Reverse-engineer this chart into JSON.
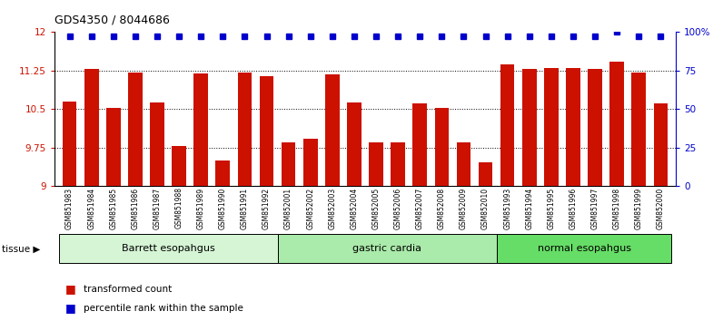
{
  "title": "GDS4350 / 8044686",
  "samples": [
    "GSM851983",
    "GSM851984",
    "GSM851985",
    "GSM851986",
    "GSM851987",
    "GSM851988",
    "GSM851989",
    "GSM851990",
    "GSM851991",
    "GSM851992",
    "GSM852001",
    "GSM852002",
    "GSM852003",
    "GSM852004",
    "GSM852005",
    "GSM852006",
    "GSM852007",
    "GSM852008",
    "GSM852009",
    "GSM852010",
    "GSM851993",
    "GSM851994",
    "GSM851995",
    "GSM851996",
    "GSM851997",
    "GSM851998",
    "GSM851999",
    "GSM852000"
  ],
  "bar_values": [
    10.65,
    11.28,
    10.52,
    11.22,
    10.63,
    9.78,
    11.2,
    9.5,
    11.22,
    11.15,
    9.85,
    9.93,
    11.17,
    10.63,
    9.86,
    9.86,
    10.62,
    10.52,
    9.86,
    9.47,
    11.38,
    11.28,
    11.3,
    11.3,
    11.28,
    11.42,
    11.22,
    10.62
  ],
  "percentile_values": [
    97,
    97,
    97,
    97,
    97,
    97,
    97,
    97,
    97,
    97,
    97,
    97,
    97,
    97,
    97,
    97,
    97,
    97,
    97,
    97,
    97,
    97,
    97,
    97,
    97,
    100,
    97,
    97
  ],
  "groups": [
    {
      "label": "Barrett esopahgus",
      "start": 0,
      "end": 10,
      "color": "#d5f5d5"
    },
    {
      "label": "gastric cardia",
      "start": 10,
      "end": 20,
      "color": "#aaeaaa"
    },
    {
      "label": "normal esopahgus",
      "start": 20,
      "end": 28,
      "color": "#66dd66"
    }
  ],
  "bar_color": "#cc1100",
  "dot_color": "#0000cc",
  "ylim_left": [
    9.0,
    12.0
  ],
  "ylim_right": [
    0,
    100
  ],
  "yticks_left": [
    9.0,
    9.75,
    10.5,
    11.25,
    12.0
  ],
  "ytick_labels_left": [
    "9",
    "9.75",
    "10.5",
    "11.25",
    "12"
  ],
  "yticks_right": [
    0,
    25,
    50,
    75,
    100
  ],
  "ytick_labels_right": [
    "0",
    "25",
    "50",
    "75",
    "100%"
  ],
  "hlines": [
    9.75,
    10.5,
    11.25
  ],
  "legend_bar_label": "transformed count",
  "legend_dot_label": "percentile rank within the sample",
  "plot_bg_color": "#ffffff",
  "xtick_bg_color": "#d0d0d0",
  "fig_bg_color": "#ffffff"
}
